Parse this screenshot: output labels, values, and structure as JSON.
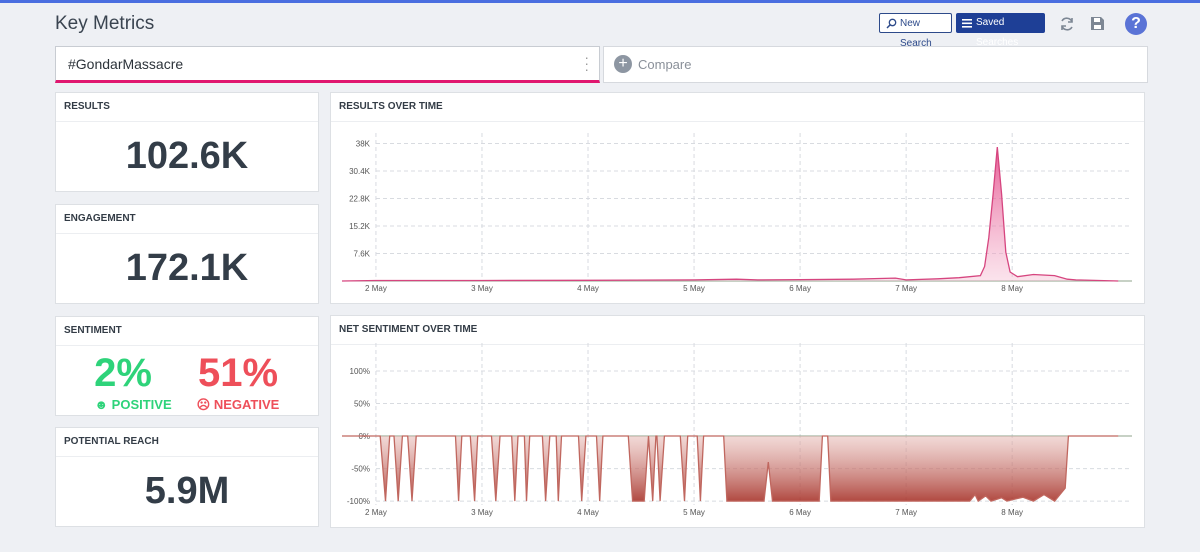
{
  "header": {
    "title": "Key Metrics",
    "buttons": [
      "New Search",
      "Saved Searches"
    ],
    "help": "?"
  },
  "search": {
    "query": "#GondarMassacre",
    "compare": "Compare"
  },
  "metrics": [
    {
      "label": "RESULTS",
      "value": "102.6K"
    },
    {
      "label": "ENGAGEMENT",
      "value": "172.1K"
    },
    {
      "label": "POTENTIAL REACH",
      "value": "5.9M"
    }
  ],
  "sentiment": {
    "label": "SENTIMENT",
    "positive": {
      "value": "2%",
      "label": "POSITIVE"
    },
    "negative": {
      "value": "51%",
      "label": "NEGATIVE"
    }
  },
  "chart_data": [
    {
      "type": "area",
      "title": "RESULTS OVER TIME",
      "color": "#d6457f",
      "grid": true,
      "x": [
        1.68,
        2.0,
        3.0,
        4.0,
        5.0,
        5.4,
        5.6,
        6.0,
        6.5,
        6.9,
        7.0,
        7.3,
        7.5,
        7.7,
        7.74,
        7.78,
        7.82,
        7.86,
        7.9,
        7.94,
        7.98,
        8.05,
        8.2,
        8.4,
        8.52,
        8.6,
        9.0
      ],
      "values": [
        0,
        150,
        150,
        200,
        300,
        500,
        300,
        400,
        500,
        800,
        300,
        600,
        900,
        1500,
        4000,
        12000,
        24000,
        37000,
        24000,
        8000,
        2500,
        1200,
        1800,
        1500,
        500,
        300,
        0
      ],
      "xlim": [
        1.68,
        9.13
      ],
      "xticks": [
        {
          "value": 2,
          "label": "2 May"
        },
        {
          "value": 3,
          "label": "3 May"
        },
        {
          "value": 4,
          "label": "4 May"
        },
        {
          "value": 5,
          "label": "5 May"
        },
        {
          "value": 6,
          "label": "6 May"
        },
        {
          "value": 7,
          "label": "7 May"
        },
        {
          "value": 8,
          "label": "8 May"
        }
      ],
      "ylim": [
        0,
        40900
      ],
      "yticks": [
        {
          "value": 7600,
          "label": "7.6K"
        },
        {
          "value": 15200,
          "label": "15.2K"
        },
        {
          "value": 22800,
          "label": "22.8K"
        },
        {
          "value": 30400,
          "label": "30.4K"
        },
        {
          "value": 38000,
          "label": "38K"
        }
      ]
    },
    {
      "type": "area",
      "title": "NET SENTIMENT OVER TIME",
      "color": "#c0675f",
      "grid": true,
      "x": [
        1.68,
        2.04,
        2.09,
        2.13,
        2.17,
        2.21,
        2.25,
        2.3,
        2.34,
        2.38,
        2.75,
        2.78,
        2.81,
        2.89,
        2.93,
        2.96,
        3.09,
        3.13,
        3.17,
        3.28,
        3.31,
        3.34,
        3.4,
        3.42,
        3.45,
        3.57,
        3.6,
        3.64,
        3.7,
        3.72,
        3.75,
        3.91,
        3.94,
        3.98,
        4.08,
        4.11,
        4.14,
        4.38,
        4.42,
        4.53,
        4.57,
        4.61,
        4.64,
        4.65,
        4.68,
        4.72,
        4.87,
        4.91,
        4.94,
        5.03,
        5.06,
        5.09,
        5.28,
        5.31,
        5.66,
        5.7,
        5.74,
        6.18,
        6.21,
        6.26,
        6.29,
        7.6,
        7.65,
        7.68,
        7.75,
        7.8,
        7.9,
        7.95,
        8.1,
        8.2,
        8.3,
        8.4,
        8.5,
        8.53,
        9.0
      ],
      "values": [
        0,
        0,
        -100,
        0,
        0,
        -100,
        0,
        0,
        -100,
        0,
        0,
        -100,
        0,
        0,
        -100,
        0,
        0,
        -100,
        0,
        0,
        -100,
        0,
        0,
        -100,
        0,
        0,
        -100,
        0,
        0,
        -100,
        0,
        0,
        -100,
        0,
        0,
        -100,
        0,
        0,
        -100,
        -100,
        0,
        -100,
        0,
        0,
        -100,
        0,
        0,
        -100,
        0,
        0,
        -100,
        0,
        0,
        -100,
        -100,
        -40,
        -100,
        -100,
        0,
        0,
        -100,
        -100,
        -90,
        -100,
        -92,
        -100,
        -95,
        -100,
        -94,
        -100,
        -90,
        -100,
        -80,
        0,
        0
      ],
      "xlim": [
        1.68,
        9.13
      ],
      "xticks": [
        {
          "value": 2,
          "label": "2 May"
        },
        {
          "value": 3,
          "label": "3 May"
        },
        {
          "value": 4,
          "label": "4 May"
        },
        {
          "value": 5,
          "label": "5 May"
        },
        {
          "value": 6,
          "label": "6 May"
        },
        {
          "value": 7,
          "label": "7 May"
        },
        {
          "value": 8,
          "label": "8 May"
        }
      ],
      "ylim": [
        -106,
        143
      ],
      "yticks": [
        {
          "value": -100,
          "label": "-100%"
        },
        {
          "value": -50,
          "label": "-50%"
        },
        {
          "value": 0,
          "label": "0%"
        },
        {
          "value": 50,
          "label": "50%"
        },
        {
          "value": 100,
          "label": "100%"
        }
      ]
    }
  ]
}
